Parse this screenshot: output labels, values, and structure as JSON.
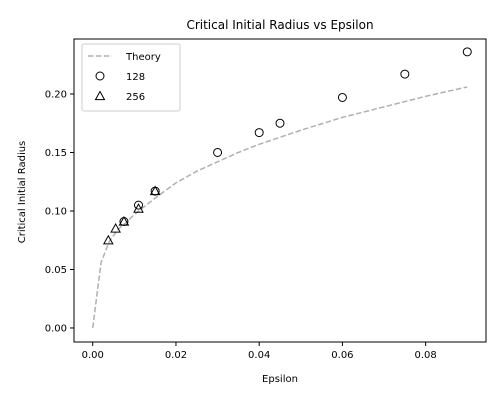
{
  "chart_data": {
    "type": "scatter",
    "title": "Critical Initial Radius vs Epsilon",
    "xlabel": "Epsilon",
    "ylabel": "Critical Initial Radius",
    "xlim": [
      -0.0045,
      0.0945
    ],
    "ylim": [
      -0.012,
      0.247
    ],
    "x_ticks": [
      0.0,
      0.02,
      0.04,
      0.06,
      0.08
    ],
    "x_tick_labels": [
      "0.00",
      "0.02",
      "0.04",
      "0.06",
      "0.08"
    ],
    "y_ticks": [
      0.0,
      0.05,
      0.1,
      0.15,
      0.2
    ],
    "y_tick_labels": [
      "0.00",
      "0.05",
      "0.10",
      "0.15",
      "0.20"
    ],
    "grid": false,
    "legend_position": "top-left",
    "legend": [
      {
        "label": "Theory",
        "marker": "dashed-line"
      },
      {
        "label": "128",
        "marker": "circle"
      },
      {
        "label": "256",
        "marker": "triangle"
      }
    ],
    "series": [
      {
        "name": "Theory",
        "style": "dashed-line",
        "color": "#b0b0b0",
        "x": [
          0.0,
          0.002,
          0.004,
          0.006,
          0.008,
          0.01,
          0.015,
          0.02,
          0.025,
          0.03,
          0.035,
          0.04,
          0.05,
          0.06,
          0.07,
          0.08,
          0.09
        ],
        "y": [
          0.0,
          0.056,
          0.074,
          0.084,
          0.09,
          0.097,
          0.111,
          0.124,
          0.134,
          0.142,
          0.15,
          0.157,
          0.169,
          0.18,
          0.189,
          0.198,
          0.206
        ]
      },
      {
        "name": "128",
        "style": "circle",
        "color": "#000000",
        "x": [
          0.0075,
          0.011,
          0.015,
          0.03,
          0.04,
          0.045,
          0.06,
          0.075,
          0.09
        ],
        "y": [
          0.091,
          0.105,
          0.117,
          0.15,
          0.167,
          0.175,
          0.197,
          0.217,
          0.236
        ]
      },
      {
        "name": "256",
        "style": "triangle",
        "color": "#000000",
        "x": [
          0.00375,
          0.0055,
          0.0075,
          0.011,
          0.015
        ],
        "y": [
          0.075,
          0.085,
          0.091,
          0.102,
          0.117
        ]
      }
    ]
  }
}
